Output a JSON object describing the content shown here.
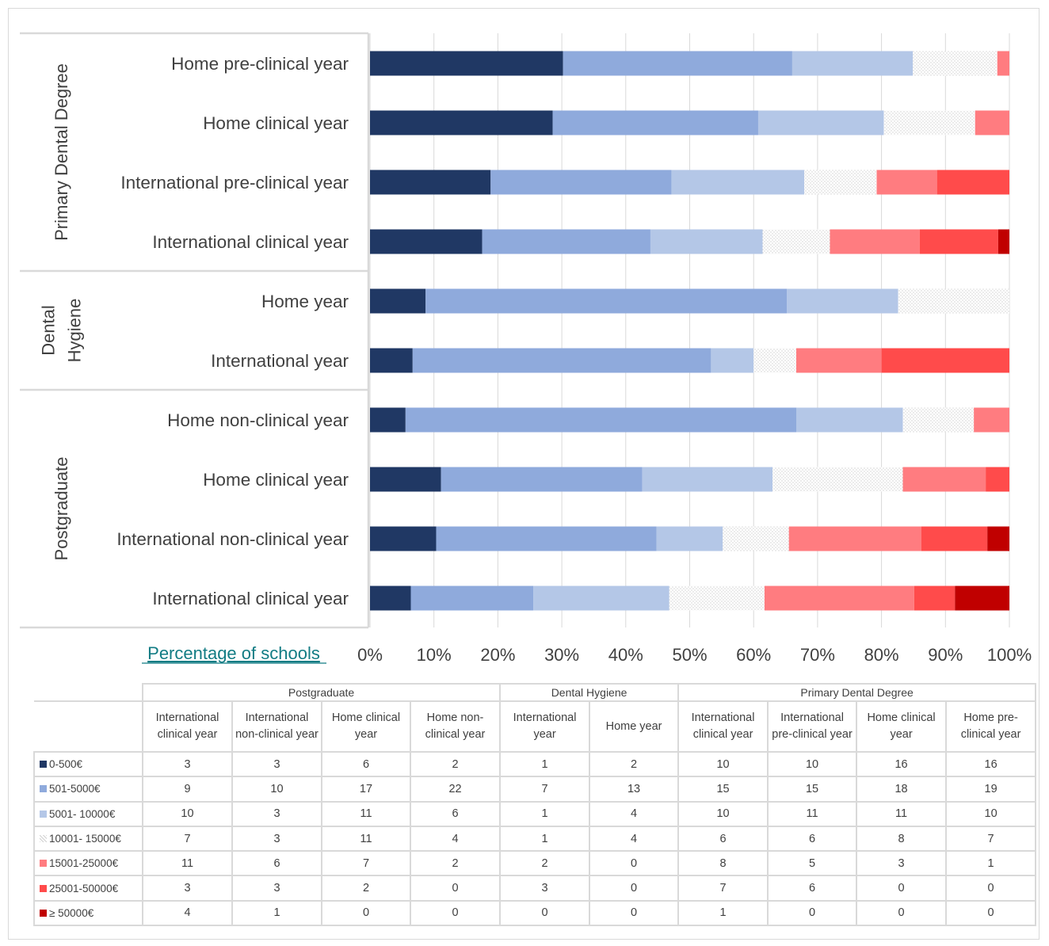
{
  "chart_data": {
    "type": "bar",
    "orientation": "horizontal",
    "stacking": "percent",
    "xlabel": "Percentage of schools",
    "ylabel": "",
    "xlim": [
      0,
      100
    ],
    "x_ticks": [
      "0%",
      "10%",
      "20%",
      "30%",
      "40%",
      "50%",
      "60%",
      "70%",
      "80%",
      "90%",
      "100%"
    ],
    "grid": true,
    "legend": "in-table",
    "groups": [
      {
        "label": "Primary Dental Degree",
        "label_lines": [
          "Primary Dental Degree"
        ],
        "categories": [
          "Home pre-clinical year",
          "Home clinical year",
          "International pre-clinical year",
          "International clinical year"
        ]
      },
      {
        "label": "Dental Hygiene",
        "label_lines": [
          "Dental",
          "Hygiene"
        ],
        "categories": [
          "Home year",
          "International year"
        ]
      },
      {
        "label": "Postgraduate",
        "label_lines": [
          "Postgraduate"
        ],
        "categories": [
          "Home non-clinical year",
          "Home clinical year",
          "International non-clinical year",
          "International clinical year"
        ]
      }
    ],
    "series": [
      {
        "name": "0-500€",
        "color": "#203864",
        "pattern": "solid",
        "values": [
          16,
          16,
          10,
          10,
          2,
          1,
          2,
          6,
          3,
          3
        ]
      },
      {
        "name": "501-5000€",
        "color": "#8faadc",
        "pattern": "solid",
        "values": [
          19,
          18,
          15,
          15,
          13,
          7,
          22,
          17,
          10,
          9
        ]
      },
      {
        "name": "5001- 10000€",
        "color": "#b4c7e7",
        "pattern": "solid",
        "values": [
          10,
          11,
          11,
          10,
          4,
          1,
          6,
          11,
          3,
          10
        ]
      },
      {
        "name": "10001- 15000€",
        "color": "#f2f2f2",
        "pattern": "dotted",
        "values": [
          7,
          8,
          6,
          6,
          4,
          1,
          4,
          11,
          3,
          7
        ]
      },
      {
        "name": "15001-25000€",
        "color": "#ff7c80",
        "pattern": "solid",
        "values": [
          1,
          3,
          5,
          8,
          0,
          2,
          2,
          7,
          6,
          11
        ]
      },
      {
        "name": "25001-50000€",
        "color": "#ff4b4b",
        "pattern": "solid",
        "values": [
          0,
          0,
          6,
          7,
          0,
          3,
          0,
          2,
          3,
          3
        ]
      },
      {
        "name": "≥ 50000€",
        "color": "#c00000",
        "pattern": "solid",
        "values": [
          0,
          0,
          0,
          1,
          0,
          0,
          0,
          0,
          1,
          4
        ]
      }
    ]
  },
  "table": {
    "group_headers": [
      {
        "label": "Postgraduate",
        "span": 4
      },
      {
        "label": "Dental Hygiene",
        "span": 2
      },
      {
        "label": "Primary Dental Degree",
        "span": 4
      }
    ],
    "column_headers": [
      "International clinical year",
      "International non-clinical year",
      "Home clinical year",
      "Home non-clinical year",
      "International year",
      "Home year",
      "International clinical year",
      "International pre-clinical year",
      "Home clinical year",
      "Home pre-clinical year"
    ],
    "rows": [
      {
        "label": "0-500€",
        "values": [
          3,
          3,
          6,
          2,
          1,
          2,
          10,
          10,
          16,
          16
        ]
      },
      {
        "label": "501-5000€",
        "values": [
          9,
          10,
          17,
          22,
          7,
          13,
          15,
          15,
          18,
          19
        ]
      },
      {
        "label": "5001- 10000€",
        "values": [
          10,
          3,
          11,
          6,
          1,
          4,
          10,
          11,
          11,
          10
        ]
      },
      {
        "label": "10001- 15000€",
        "values": [
          7,
          3,
          11,
          4,
          1,
          4,
          6,
          6,
          8,
          7
        ]
      },
      {
        "label": "15001-25000€",
        "values": [
          11,
          6,
          7,
          2,
          2,
          0,
          8,
          5,
          3,
          1
        ]
      },
      {
        "label": "25001-50000€",
        "values": [
          3,
          3,
          2,
          0,
          3,
          0,
          7,
          6,
          0,
          0
        ]
      },
      {
        "label": "≥ 50000€",
        "values": [
          4,
          1,
          0,
          0,
          0,
          0,
          1,
          0,
          0,
          0
        ]
      }
    ]
  }
}
